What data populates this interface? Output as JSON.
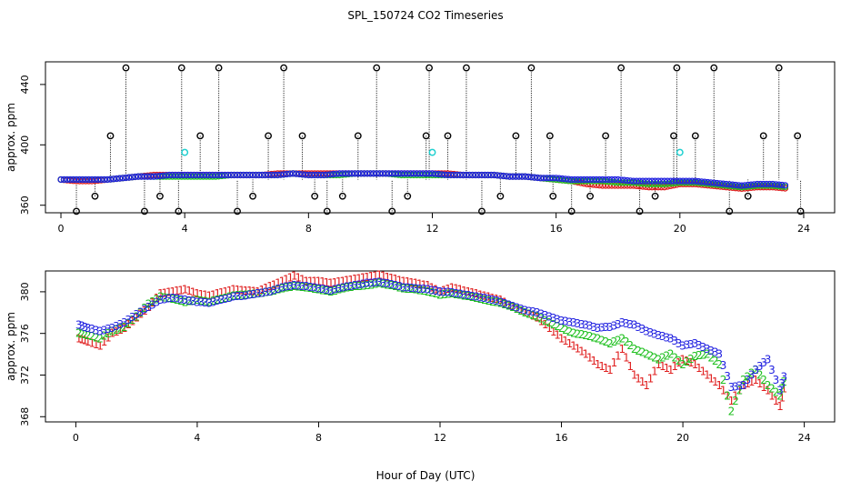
{
  "figure": {
    "title": "SPL_150724  CO2 Timeseries",
    "xlabel": "Hour of Day (UTC)"
  },
  "chart_data": [
    {
      "type": "scatter",
      "ylabel": "approx. ppm",
      "xlim": [
        -0.5,
        25
      ],
      "ylim": [
        355,
        455
      ],
      "xticks": [
        0,
        4,
        8,
        12,
        16,
        20,
        24
      ],
      "yticks": [
        360,
        400,
        440
      ],
      "ytick_labels_shown": [
        "360",
        "400",
        "440"
      ],
      "grid": false,
      "colors": {
        "s1": "#e02020",
        "s2": "#20c020",
        "s3": "#2020e0",
        "reference": "#000000",
        "calibration": "#20d0d0"
      },
      "series": [
        {
          "values_desc": "s1",
          "x": [
            0,
            0.5,
            1,
            1.5,
            2,
            2.5,
            3,
            3.5,
            4,
            4.5,
            5,
            5.5,
            6,
            6.5,
            7,
            7.5,
            8,
            8.5,
            9,
            9.5,
            10,
            10.5,
            11,
            11.5,
            12,
            12.5,
            13,
            13.5,
            14,
            14.5,
            15,
            15.5,
            16,
            16.5,
            17,
            17.5,
            18,
            18.5,
            19,
            19.5,
            20,
            20.5,
            21,
            21.5,
            22,
            22.5,
            23,
            23.5
          ],
          "y": [
            377,
            376,
            376,
            377,
            378,
            379,
            380,
            380,
            380,
            380,
            380,
            380,
            380,
            380,
            381,
            381,
            381,
            381,
            381,
            381,
            381,
            381,
            381,
            381,
            381,
            381,
            380,
            380,
            380,
            379,
            379,
            378,
            377,
            376,
            374,
            373,
            373,
            373,
            372,
            372,
            374,
            374,
            373,
            372,
            371,
            372,
            372,
            371
          ]
        },
        {
          "values_desc": "s2",
          "x": [
            0,
            0.5,
            1,
            1.5,
            2,
            2.5,
            3,
            3.5,
            4,
            4.5,
            5,
            5.5,
            6,
            6.5,
            7,
            7.5,
            8,
            8.5,
            9,
            9.5,
            10,
            10.5,
            11,
            11.5,
            12,
            12.5,
            13,
            13.5,
            14,
            14.5,
            15,
            15.5,
            16,
            16.5,
            17,
            17.5,
            18,
            18.5,
            19,
            19.5,
            20,
            20.5,
            21,
            21.5,
            22,
            22.5,
            23,
            23.5
          ],
          "y": [
            377,
            377,
            377,
            377,
            378,
            379,
            379,
            379,
            379,
            379,
            379,
            380,
            380,
            380,
            380,
            381,
            380,
            380,
            380,
            381,
            381,
            381,
            380,
            380,
            380,
            380,
            380,
            380,
            380,
            379,
            379,
            378,
            377,
            376,
            376,
            376,
            375,
            375,
            374,
            374,
            375,
            375,
            374,
            373,
            372,
            373,
            373,
            372
          ]
        },
        {
          "values_desc": "s3",
          "x": [
            0,
            0.5,
            1,
            1.5,
            2,
            2.5,
            3,
            3.5,
            4,
            4.5,
            5,
            5.5,
            6,
            6.5,
            7,
            7.5,
            8,
            8.5,
            9,
            9.5,
            10,
            10.5,
            11,
            11.5,
            12,
            12.5,
            13,
            13.5,
            14,
            14.5,
            15,
            15.5,
            16,
            16.5,
            17,
            17.5,
            18,
            18.5,
            19,
            19.5,
            20,
            20.5,
            21,
            21.5,
            22,
            22.5,
            23,
            23.5
          ],
          "y": [
            377,
            377,
            377,
            377,
            378,
            379,
            379,
            380,
            380,
            380,
            380,
            380,
            380,
            380,
            380,
            381,
            380,
            380,
            381,
            381,
            381,
            381,
            381,
            381,
            381,
            380,
            380,
            380,
            380,
            379,
            379,
            378,
            378,
            377,
            377,
            377,
            377,
            376,
            376,
            376,
            376,
            376,
            375,
            374,
            373,
            374,
            374,
            373
          ]
        },
        {
          "values_desc": "reference",
          "x": [
            0.5,
            1.1,
            1.6,
            2.1,
            2.7,
            3.2,
            3.8,
            3.9,
            4.5,
            5.1,
            5.7,
            6.2,
            6.7,
            7.2,
            7.8,
            8.2,
            8.6,
            9.1,
            9.6,
            10.2,
            10.7,
            11.2,
            11.8,
            11.9,
            12.5,
            13.1,
            13.6,
            14.2,
            14.7,
            15.2,
            15.8,
            15.9,
            16.5,
            17.1,
            17.6,
            18.1,
            18.7,
            19.2,
            19.8,
            19.9,
            20.5,
            21.1,
            21.6,
            22.2,
            22.7,
            23.2,
            23.8,
            23.9
          ],
          "y": [
            356,
            366,
            406,
            451,
            356,
            366,
            356,
            451,
            406,
            451,
            356,
            366,
            406,
            451,
            406,
            366,
            356,
            366,
            406,
            451,
            356,
            366,
            406,
            451,
            406,
            451,
            356,
            366,
            406,
            451,
            406,
            366,
            356,
            366,
            406,
            451,
            356,
            366,
            406,
            451,
            406,
            451,
            356,
            366,
            406,
            451,
            406,
            356
          ]
        },
        {
          "values_desc": "calibration",
          "x": [
            4.0,
            12.0,
            20.0
          ],
          "y": [
            395,
            395,
            395
          ]
        }
      ]
    },
    {
      "type": "scatter",
      "ylabel": "approx. ppm",
      "xlim": [
        -1,
        25
      ],
      "ylim": [
        367.5,
        382
      ],
      "xticks": [
        0,
        4,
        8,
        12,
        16,
        20,
        24
      ],
      "yticks": [
        368,
        372,
        376,
        380
      ],
      "grid": false,
      "series": [
        {
          "label": "1",
          "x": [
            0.1,
            0.4,
            0.8,
            1.2,
            1.6,
            2.0,
            2.4,
            2.8,
            3.2,
            3.6,
            4.0,
            4.4,
            4.8,
            5.2,
            5.6,
            6.0,
            6.4,
            6.8,
            7.2,
            7.6,
            8.0,
            8.4,
            8.8,
            9.2,
            9.6,
            10.0,
            10.4,
            10.8,
            11.2,
            11.6,
            12.0,
            12.4,
            12.8,
            13.2,
            13.6,
            14.0,
            14.4,
            14.8,
            15.2,
            15.6,
            16.0,
            16.4,
            16.8,
            17.2,
            17.6,
            18.0,
            18.4,
            18.8,
            19.2,
            19.6,
            20.0,
            20.4,
            20.8,
            21.2,
            21.6,
            22.0,
            22.4,
            22.8,
            23.2,
            23.4
          ],
          "y": [
            375.5,
            375.2,
            374.8,
            376.0,
            376.5,
            377.5,
            378.5,
            379.8,
            380.0,
            380.2,
            379.8,
            379.6,
            379.9,
            380.2,
            380.1,
            380.0,
            380.5,
            381.0,
            381.5,
            381.0,
            381.0,
            380.8,
            381.0,
            381.2,
            381.4,
            381.6,
            381.3,
            381.0,
            380.8,
            380.6,
            380.0,
            380.4,
            380.1,
            379.8,
            379.5,
            379.2,
            378.5,
            378.0,
            377.5,
            376.5,
            375.5,
            374.8,
            374.0,
            373.0,
            372.5,
            374.5,
            372.0,
            371.0,
            373.0,
            372.5,
            373.5,
            373.0,
            372.0,
            371.0,
            369.5,
            371.0,
            371.5,
            370.5,
            369.0,
            371.5
          ]
        },
        {
          "label": "2",
          "x": [
            0.1,
            0.4,
            0.8,
            1.2,
            1.6,
            2.0,
            2.4,
            2.8,
            3.2,
            3.6,
            4.0,
            4.4,
            4.8,
            5.2,
            5.6,
            6.0,
            6.4,
            6.8,
            7.2,
            7.6,
            8.0,
            8.4,
            8.8,
            9.2,
            9.6,
            10.0,
            10.4,
            10.8,
            11.2,
            11.6,
            12.0,
            12.4,
            12.8,
            13.2,
            13.6,
            14.0,
            14.4,
            14.8,
            15.2,
            15.6,
            16.0,
            16.4,
            16.8,
            17.2,
            17.6,
            18.0,
            18.4,
            18.8,
            19.2,
            19.6,
            20.0,
            20.4,
            20.8,
            21.2,
            21.6,
            22.0,
            22.4,
            22.8,
            23.2,
            23.4
          ],
          "y": [
            376.0,
            375.8,
            375.5,
            376.2,
            376.6,
            377.6,
            378.8,
            379.5,
            379.3,
            379.0,
            379.2,
            379.0,
            379.3,
            379.6,
            379.7,
            379.8,
            380.0,
            380.3,
            380.5,
            380.4,
            380.2,
            380.0,
            380.3,
            380.5,
            380.6,
            380.8,
            380.6,
            380.3,
            380.2,
            380.0,
            379.7,
            379.8,
            379.6,
            379.4,
            379.1,
            378.9,
            378.5,
            378.0,
            377.6,
            377.0,
            376.5,
            376.0,
            375.8,
            375.5,
            375.0,
            375.5,
            374.5,
            374.0,
            373.5,
            374.0,
            373.0,
            373.8,
            374.0,
            373.0,
            368.5,
            371.5,
            372.5,
            371.0,
            370.0,
            372.0
          ]
        },
        {
          "label": "3",
          "x": [
            0.1,
            0.4,
            0.8,
            1.2,
            1.6,
            2.0,
            2.4,
            2.8,
            3.2,
            3.6,
            4.0,
            4.4,
            4.8,
            5.2,
            5.6,
            6.0,
            6.4,
            6.8,
            7.2,
            7.6,
            8.0,
            8.4,
            8.8,
            9.2,
            9.6,
            10.0,
            10.4,
            10.8,
            11.2,
            11.6,
            12.0,
            12.4,
            12.8,
            13.2,
            13.6,
            14.0,
            14.4,
            14.8,
            15.2,
            15.6,
            16.0,
            16.4,
            16.8,
            17.2,
            17.6,
            18.0,
            18.4,
            18.8,
            19.2,
            19.6,
            20.0,
            20.4,
            20.8,
            21.2,
            21.6,
            22.0,
            22.4,
            22.8,
            23.2,
            23.4
          ],
          "y": [
            376.8,
            376.5,
            376.2,
            376.5,
            377.0,
            377.8,
            378.5,
            379.2,
            379.4,
            379.2,
            379.0,
            378.9,
            379.2,
            379.5,
            379.6,
            379.8,
            380.0,
            380.4,
            380.6,
            380.5,
            380.3,
            380.1,
            380.4,
            380.6,
            380.8,
            380.9,
            380.7,
            380.4,
            380.3,
            380.2,
            380.0,
            379.9,
            379.7,
            379.5,
            379.3,
            379.0,
            378.6,
            378.2,
            378.0,
            377.6,
            377.2,
            377.0,
            376.8,
            376.5,
            376.6,
            377.0,
            376.8,
            376.2,
            375.8,
            375.5,
            374.8,
            375.0,
            374.5,
            374.0,
            370.8,
            371.0,
            372.5,
            373.5,
            370.5,
            372.5
          ]
        }
      ]
    }
  ]
}
